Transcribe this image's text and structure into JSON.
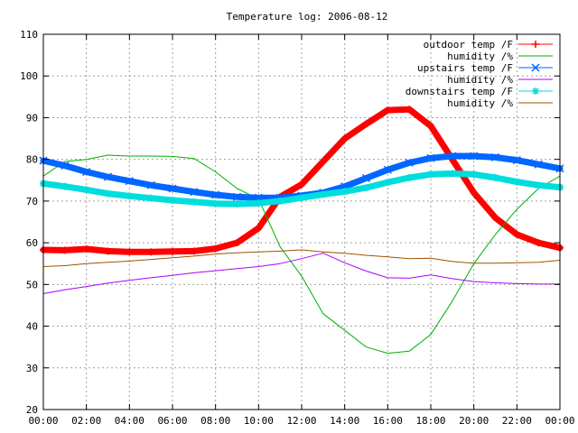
{
  "chart_data": {
    "type": "line",
    "title": "Temperature log: 2006-08-12",
    "xlabel": "",
    "ylabel": "",
    "xlim": [
      0,
      24
    ],
    "ylim": [
      20,
      110
    ],
    "x_ticks": [
      "00:00",
      "02:00",
      "04:00",
      "06:00",
      "08:00",
      "10:00",
      "12:00",
      "14:00",
      "16:00",
      "18:00",
      "20:00",
      "22:00",
      "00:00"
    ],
    "y_ticks": [
      20,
      30,
      40,
      50,
      60,
      70,
      80,
      90,
      100,
      110
    ],
    "grid": true,
    "legend_position": "top-right",
    "x_hours": [
      0,
      1,
      2,
      3,
      4,
      5,
      6,
      7,
      8,
      9,
      10,
      11,
      12,
      13,
      14,
      15,
      16,
      17,
      18,
      19,
      20,
      21,
      22,
      23,
      24
    ],
    "series": [
      {
        "name": "outdoor temp /F",
        "color": "#ff0000",
        "marker": "plus",
        "values": [
          58.3,
          58.2,
          58.5,
          58,
          57.8,
          57.8,
          57.9,
          58,
          58.6,
          60,
          63.5,
          71,
          74,
          79.5,
          85,
          88.5,
          91.8,
          92,
          88,
          80,
          72,
          66,
          62,
          60,
          58.8
        ]
      },
      {
        "name": "humidity /%",
        "color": "#00b000",
        "marker": "none",
        "values": [
          76,
          79.5,
          80,
          81,
          80.8,
          80.8,
          80.7,
          80.2,
          77,
          73,
          70.5,
          59,
          52,
          43,
          39,
          35,
          33.5,
          34,
          38,
          46,
          55,
          62,
          68,
          73,
          76
        ]
      },
      {
        "name": "upstairs temp /F",
        "color": "#0066ff",
        "marker": "x",
        "values": [
          79.7,
          78.5,
          77,
          75.8,
          74.8,
          73.8,
          73,
          72.2,
          71.5,
          71,
          70.8,
          70.8,
          71.3,
          72,
          73.5,
          75.5,
          77.5,
          79.2,
          80.3,
          80.8,
          80.8,
          80.5,
          79.8,
          78.8,
          77.8
        ]
      },
      {
        "name": "humidity /%",
        "color": "#aa00ff",
        "marker": "none",
        "values": [
          47.8,
          48.7,
          49.5,
          50.3,
          51,
          51.6,
          52.2,
          52.8,
          53.3,
          53.8,
          54.3,
          55,
          56.2,
          57.5,
          55.2,
          53.2,
          51.6,
          51.5,
          52.3,
          51.4,
          50.7,
          50.4,
          50.2,
          50.1,
          50.1
        ]
      },
      {
        "name": "downstairs temp /F",
        "color": "#00dddd",
        "marker": "star",
        "values": [
          74.2,
          73.5,
          72.7,
          71.8,
          71.2,
          70.7,
          70.2,
          69.8,
          69.4,
          69.3,
          69.5,
          70,
          70.8,
          71.6,
          72.3,
          73.2,
          74.5,
          75.6,
          76.4,
          76.6,
          76.4,
          75.6,
          74.6,
          73.8,
          73.3
        ]
      },
      {
        "name": "humidity /%",
        "color": "#a05000",
        "marker": "none",
        "values": [
          54.3,
          54.5,
          55,
          55.3,
          55.6,
          56,
          56.4,
          56.8,
          57.3,
          57.6,
          57.8,
          58,
          58.3,
          57.8,
          57.5,
          57,
          56.6,
          56.2,
          56.3,
          55.5,
          55.1,
          55.1,
          55.2,
          55.3,
          55.8
        ]
      }
    ]
  }
}
